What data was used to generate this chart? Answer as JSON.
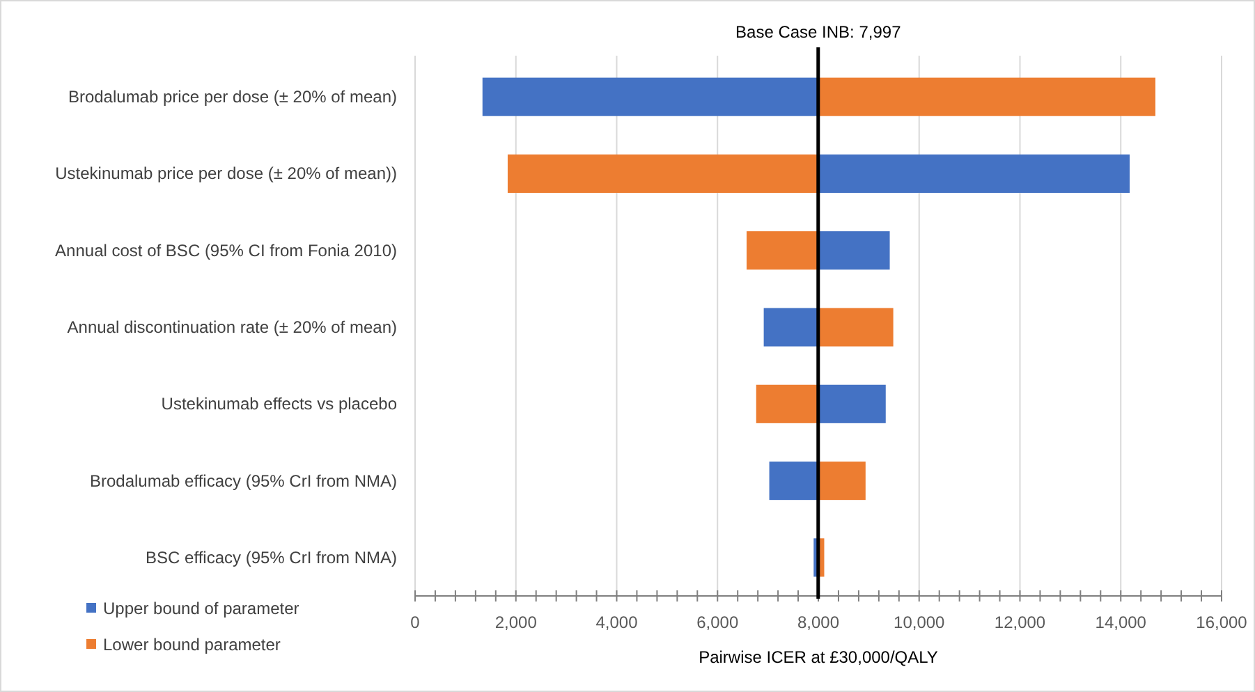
{
  "chart_data": {
    "type": "bar",
    "orientation": "horizontal",
    "xlabel": "Pairwise ICER at £30,000/QALY",
    "categories": [
      "Brodalumab price per dose (± 20% of mean)",
      "Ustekinumab price per dose   (± 20% of mean))",
      "Annual cost of BSC (95% CI from Fonia 2010)",
      "Annual discontinuation rate (± 20% of mean)",
      "Ustekinumab effects vs placebo",
      "Brodalumab efficacy (95% CrI from NMA)",
      "BSC efficacy (95% CrI from NMA)"
    ],
    "series": [
      {
        "name": "Upper bound of parameter",
        "color": "#4472c4",
        "base": [
          7997,
          7997,
          7997,
          7997,
          7997,
          7997,
          7997
        ],
        "values": [
          -6660,
          6180,
          1420,
          -1080,
          1340,
          -970,
          -90
        ]
      },
      {
        "name": "Lower bound parameter",
        "color": "#ed7d31",
        "base": [
          7997,
          7997,
          7997,
          7997,
          7997,
          7997,
          7997
        ],
        "values": [
          6690,
          -6160,
          -1420,
          1490,
          -1230,
          940,
          120
        ]
      }
    ],
    "xlim": [
      0,
      16000
    ],
    "xticks": [
      0,
      {
        "value": 400,
        "label": null
      },
      {
        "value": 800,
        "label": null
      },
      {
        "value": 1200,
        "label": null
      },
      {
        "value": 1600,
        "label": null
      },
      {
        "value": 2000,
        "label": "2,000"
      },
      {
        "value": 2400,
        "label": null
      },
      {
        "value": 2800,
        "label": null
      },
      {
        "value": 3200,
        "label": null
      },
      {
        "value": 3600,
        "label": null
      },
      {
        "value": 4000,
        "label": "4,000"
      },
      {
        "value": 4400,
        "label": null
      },
      {
        "value": 4800,
        "label": null
      },
      {
        "value": 5200,
        "label": null
      },
      {
        "value": 5600,
        "label": null
      },
      {
        "value": 6000,
        "label": "6,000"
      },
      {
        "value": 6400,
        "label": null
      },
      {
        "value": 6800,
        "label": null
      },
      {
        "value": 7200,
        "label": null
      },
      {
        "value": 7600,
        "label": null
      },
      {
        "value": 8000,
        "label": "8,000"
      },
      {
        "value": 8400,
        "label": null
      },
      {
        "value": 8800,
        "label": null
      },
      {
        "value": 9200,
        "label": null
      },
      {
        "value": 9600,
        "label": null
      },
      {
        "value": 10000,
        "label": "10,000"
      },
      {
        "value": 10400,
        "label": null
      },
      {
        "value": 10800,
        "label": null
      },
      {
        "value": 11200,
        "label": null
      },
      {
        "value": 11600,
        "label": null
      },
      {
        "value": 12000,
        "label": "12,000"
      },
      {
        "value": 12400,
        "label": null
      },
      {
        "value": 12800,
        "label": null
      },
      {
        "value": 13200,
        "label": null
      },
      {
        "value": 13600,
        "label": null
      },
      {
        "value": 14000,
        "label": "14,000"
      },
      {
        "value": 14400,
        "label": null
      },
      {
        "value": 14800,
        "label": null
      },
      {
        "value": 15200,
        "label": null
      },
      {
        "value": 15600,
        "label": null
      },
      {
        "value": 16000,
        "label": "16,000"
      }
    ],
    "grid": "x",
    "legend": "bottom left",
    "ref_lines": [
      {
        "axis": "x",
        "value": 7997,
        "label": "Base Case INB: 7,997",
        "color": "#000000"
      }
    ]
  }
}
